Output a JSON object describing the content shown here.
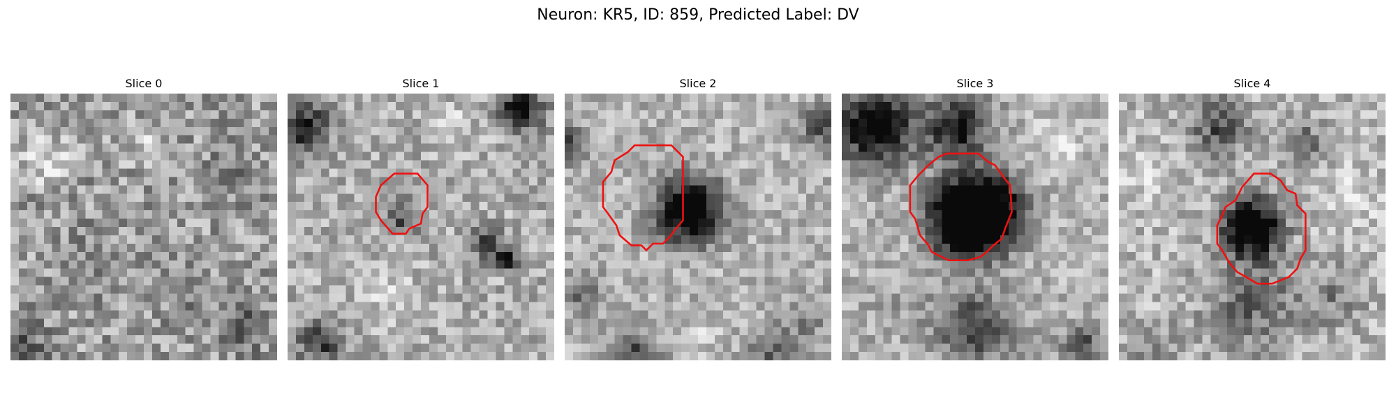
{
  "figure": {
    "title": "Neuron: KR5, ID: 859, Predicted Label: DV",
    "contour_color": "#ee1111"
  },
  "panels": [
    {
      "title": "Slice 0",
      "has_contour": false
    },
    {
      "title": "Slice 1",
      "has_contour": true
    },
    {
      "title": "Slice 2",
      "has_contour": true
    },
    {
      "title": "Slice 3",
      "has_contour": true
    },
    {
      "title": "Slice 4",
      "has_contour": true
    }
  ]
}
